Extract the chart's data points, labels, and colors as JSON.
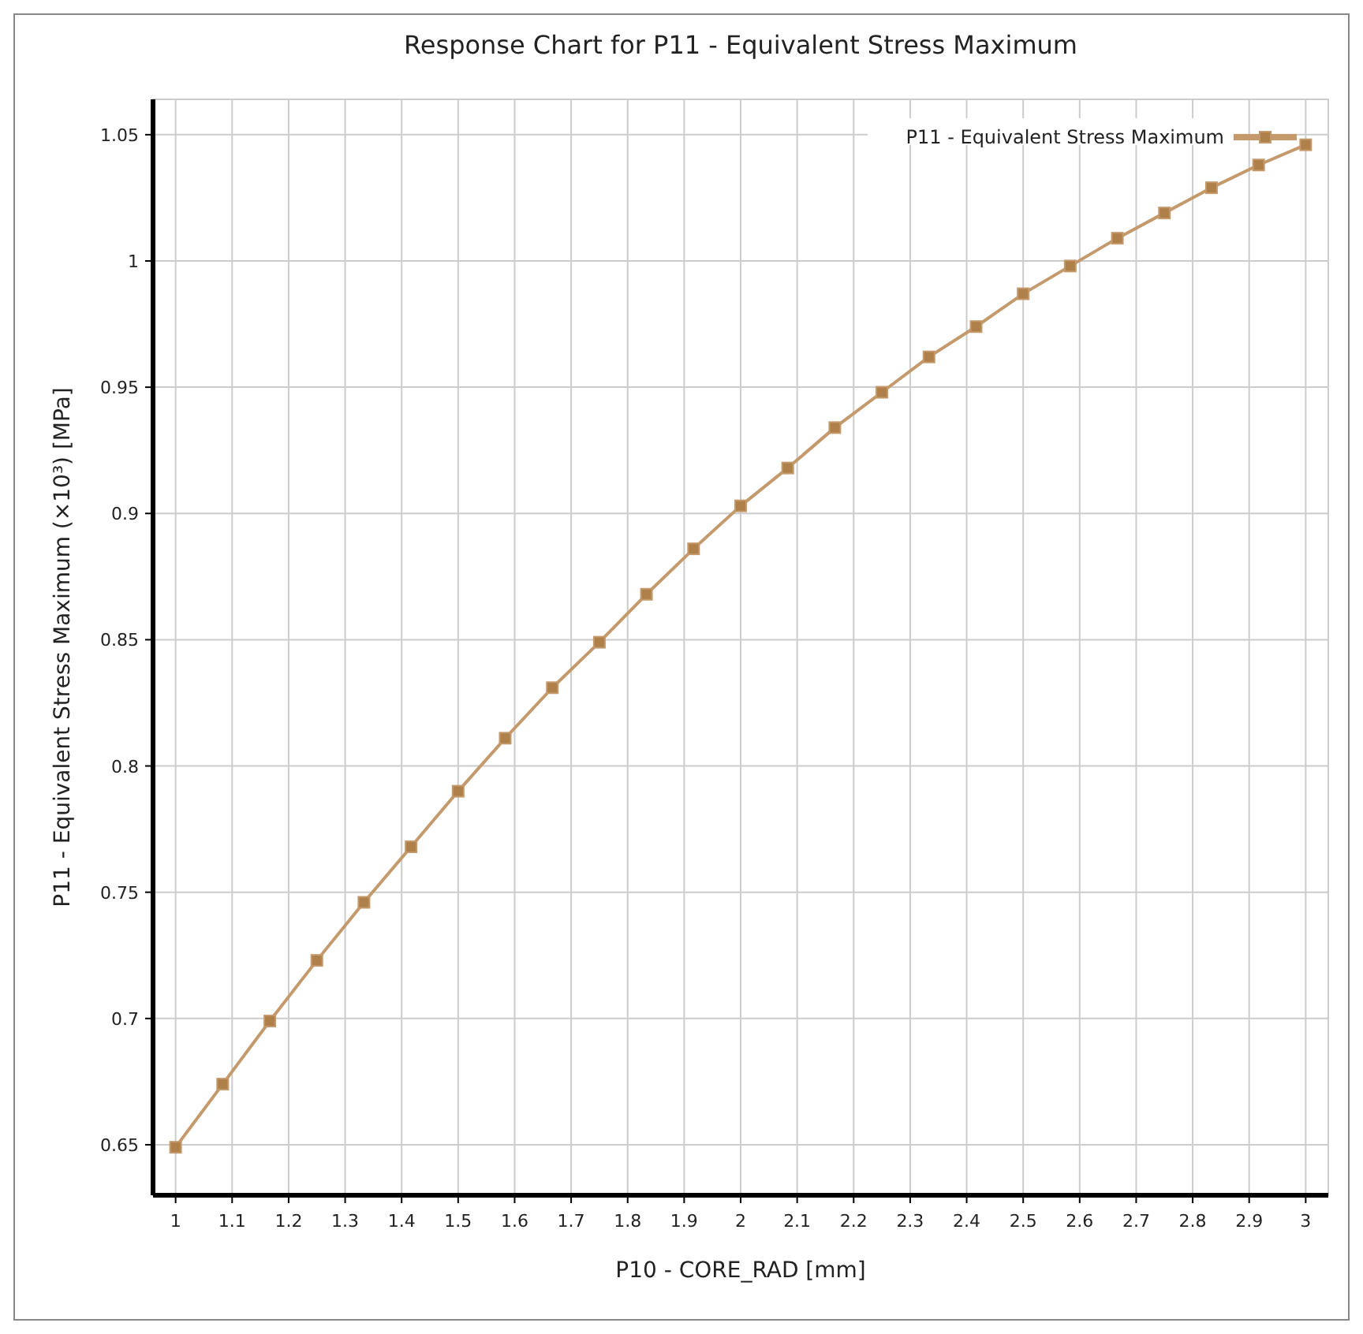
{
  "chart_data": {
    "type": "line",
    "title": "Response Chart for P11 - Equivalent Stress Maximum",
    "xlabel": "P10 - CORE_RAD  [mm]",
    "ylabel": "P11 - Equivalent Stress Maximum  (×10³)  [MPa]",
    "x": [
      1,
      1.0833,
      1.1667,
      1.25,
      1.3333,
      1.4167,
      1.5,
      1.5833,
      1.6667,
      1.75,
      1.8333,
      1.9167,
      2,
      2.0833,
      2.1667,
      2.25,
      2.3333,
      2.4167,
      2.5,
      2.5833,
      2.6667,
      2.75,
      2.8333,
      2.9167,
      3
    ],
    "series": [
      {
        "name": "P11 - Equivalent Stress Maximum",
        "color": "#c49a6c",
        "values": [
          0.649,
          0.674,
          0.699,
          0.723,
          0.746,
          0.768,
          0.79,
          0.811,
          0.831,
          0.849,
          0.868,
          0.886,
          0.903,
          0.918,
          0.934,
          0.948,
          0.962,
          0.974,
          0.987,
          0.998,
          1.009,
          1.019,
          1.029,
          1.038,
          1.046
        ]
      }
    ],
    "xlim": [
      0.96,
      3.04
    ],
    "ylim": [
      0.63,
      1.064
    ],
    "xticks": [
      1,
      1.1,
      1.2,
      1.3,
      1.4,
      1.5,
      1.6,
      1.7,
      1.8,
      1.9,
      2,
      2.1,
      2.2,
      2.3,
      2.4,
      2.5,
      2.6,
      2.7,
      2.8,
      2.9,
      3
    ],
    "yticks": [
      0.65,
      0.7,
      0.75,
      0.8,
      0.85,
      0.9,
      0.95,
      1,
      1.05
    ],
    "grid": true,
    "legend": "top right",
    "marker": "square",
    "line_style": "solid"
  }
}
